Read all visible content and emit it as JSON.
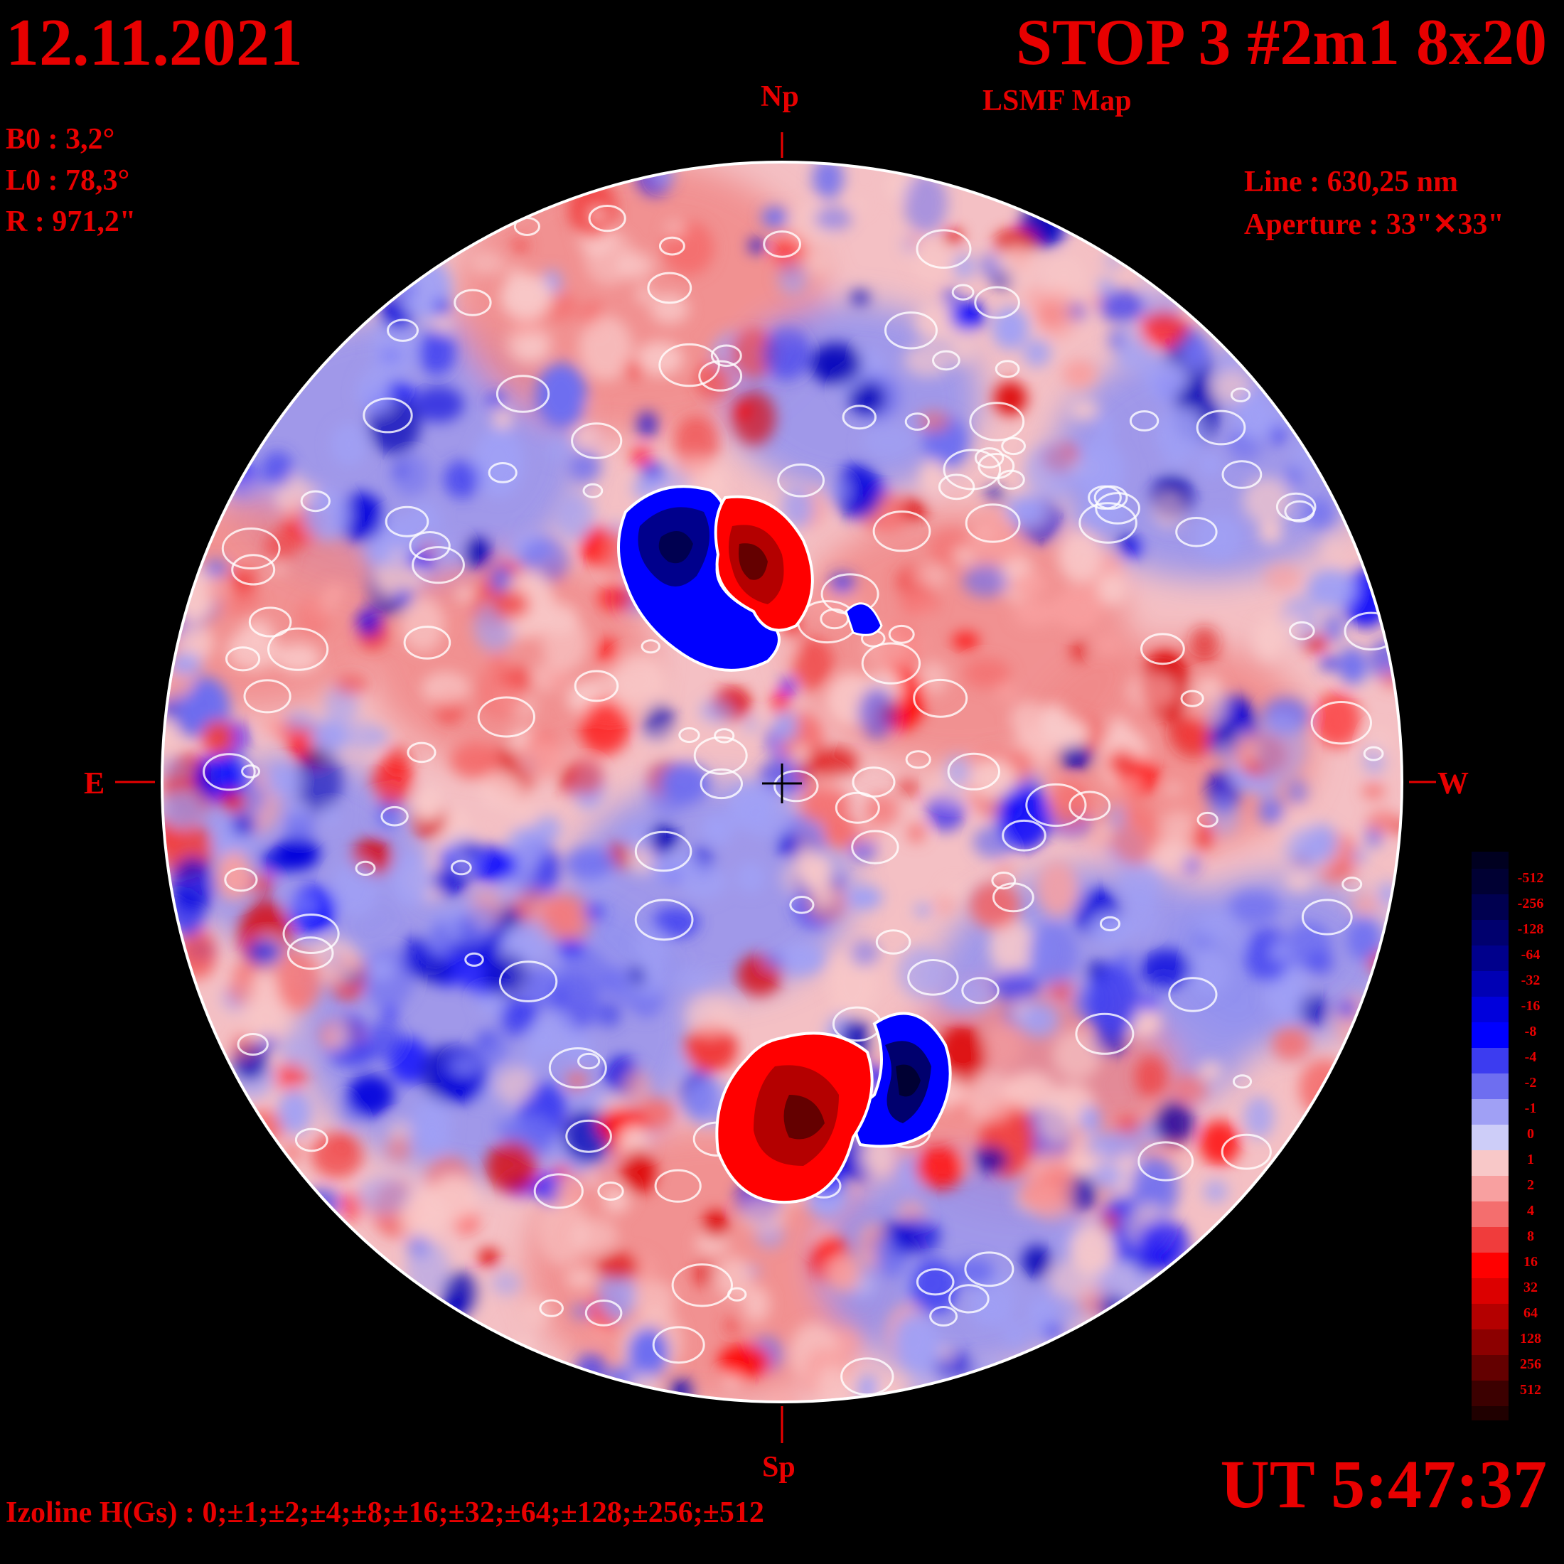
{
  "header": {
    "date": "12.11.2021",
    "title": "STOP 3 #2m1 8x20",
    "subtitle": "LSMF  Map"
  },
  "params": {
    "b0": "B0 : 3,2°",
    "l0": "L0 : 78,3°",
    "r": "R  : 971,2\""
  },
  "instrument": {
    "line": "Line :  630,25 nm",
    "aperture": "Aperture : 33\"✕33\""
  },
  "directions": {
    "north": "Np",
    "south": "Sp",
    "east": "E",
    "west": "W"
  },
  "footer": {
    "time": "UT 5:47:37",
    "izoline": "Izoline H(Gs) : 0;±1;±2;±4;±8;±16;±32;±64;±128;±256;±512"
  },
  "colorbar": {
    "levels": [
      {
        "label": "-512",
        "color": "#000033"
      },
      {
        "label": "-256",
        "color": "#000050"
      },
      {
        "label": "-128",
        "color": "#00006e"
      },
      {
        "label": "-64",
        "color": "#00008c"
      },
      {
        "label": "-32",
        "color": "#0000b4"
      },
      {
        "label": "-16",
        "color": "#0000dc"
      },
      {
        "label": "-8",
        "color": "#0000ff"
      },
      {
        "label": "-4",
        "color": "#3c3cf0"
      },
      {
        "label": "-2",
        "color": "#6e6ef0"
      },
      {
        "label": "-1",
        "color": "#a0a0f5"
      },
      {
        "label": "0",
        "color": "#cdcdf8"
      },
      {
        "label": "1",
        "color": "#f8c8c8"
      },
      {
        "label": "2",
        "color": "#f8a0a0"
      },
      {
        "label": "4",
        "color": "#f46e6e"
      },
      {
        "label": "8",
        "color": "#f03c3c"
      },
      {
        "label": "16",
        "color": "#ff0000"
      },
      {
        "label": "32",
        "color": "#dc0000"
      },
      {
        "label": "64",
        "color": "#b40000"
      },
      {
        "label": "128",
        "color": "#8c0000"
      },
      {
        "label": "256",
        "color": "#640000"
      },
      {
        "label": "512",
        "color": "#3c0000"
      }
    ],
    "top_cap_color": "#000020",
    "bottom_cap_color": "#200000"
  },
  "colors": {
    "text": "#e80000",
    "background": "#000000",
    "disk_edge": "#ffffff",
    "neutral_low": "#cdcdf8",
    "neutral_high": "#f8c8c8"
  }
}
